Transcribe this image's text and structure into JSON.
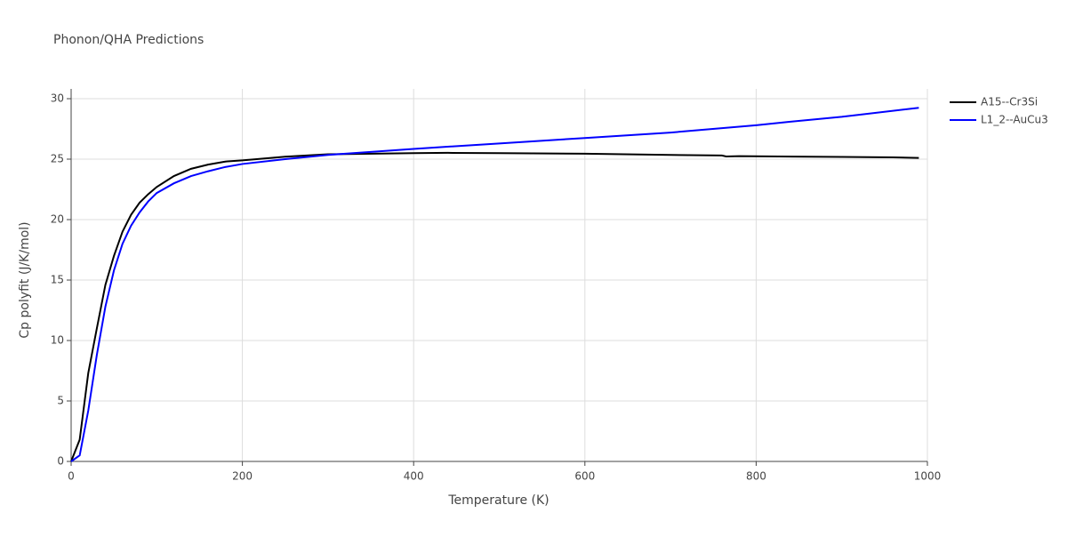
{
  "chart_data": {
    "type": "line",
    "title": "Phonon/QHA Predictions",
    "xlabel": "Temperature (K)",
    "ylabel": "Cp polyfit (J/K/mol)",
    "xlim": [
      0,
      1000
    ],
    "xticks": [
      0,
      200,
      400,
      600,
      800,
      1000
    ],
    "ylim": [
      0,
      30
    ],
    "yticks": [
      0,
      5,
      10,
      15,
      20,
      25,
      30
    ],
    "grid": true,
    "legend": "top-right",
    "series": [
      {
        "name": "A15--Cr3Si",
        "color": "#000000",
        "x": [
          0,
          10,
          20,
          30,
          40,
          50,
          60,
          70,
          80,
          90,
          100,
          120,
          140,
          160,
          180,
          200,
          250,
          300,
          400,
          440,
          500,
          600,
          700,
          760,
          765,
          780,
          900,
          960,
          990
        ],
        "values": [
          0,
          1.8,
          7.3,
          11,
          14.6,
          17,
          19,
          20.4,
          21.4,
          22.1,
          22.7,
          23.6,
          24.2,
          24.55,
          24.8,
          24.9,
          25.2,
          25.4,
          25.5,
          25.52,
          25.5,
          25.45,
          25.35,
          25.3,
          25.22,
          25.25,
          25.18,
          25.15,
          25.1
        ]
      },
      {
        "name": "L1_2--AuCu3",
        "color": "#0000ff",
        "x": [
          0,
          10,
          20,
          30,
          40,
          50,
          60,
          70,
          80,
          90,
          100,
          120,
          140,
          160,
          180,
          200,
          250,
          300,
          400,
          500,
          600,
          700,
          800,
          840,
          900,
          990
        ],
        "values": [
          0,
          0.5,
          4.2,
          8.8,
          12.8,
          15.8,
          18,
          19.5,
          20.6,
          21.5,
          22.2,
          23,
          23.6,
          24,
          24.35,
          24.6,
          25,
          25.35,
          25.85,
          26.3,
          26.75,
          27.2,
          27.8,
          28.1,
          28.5,
          29.25
        ]
      }
    ]
  }
}
